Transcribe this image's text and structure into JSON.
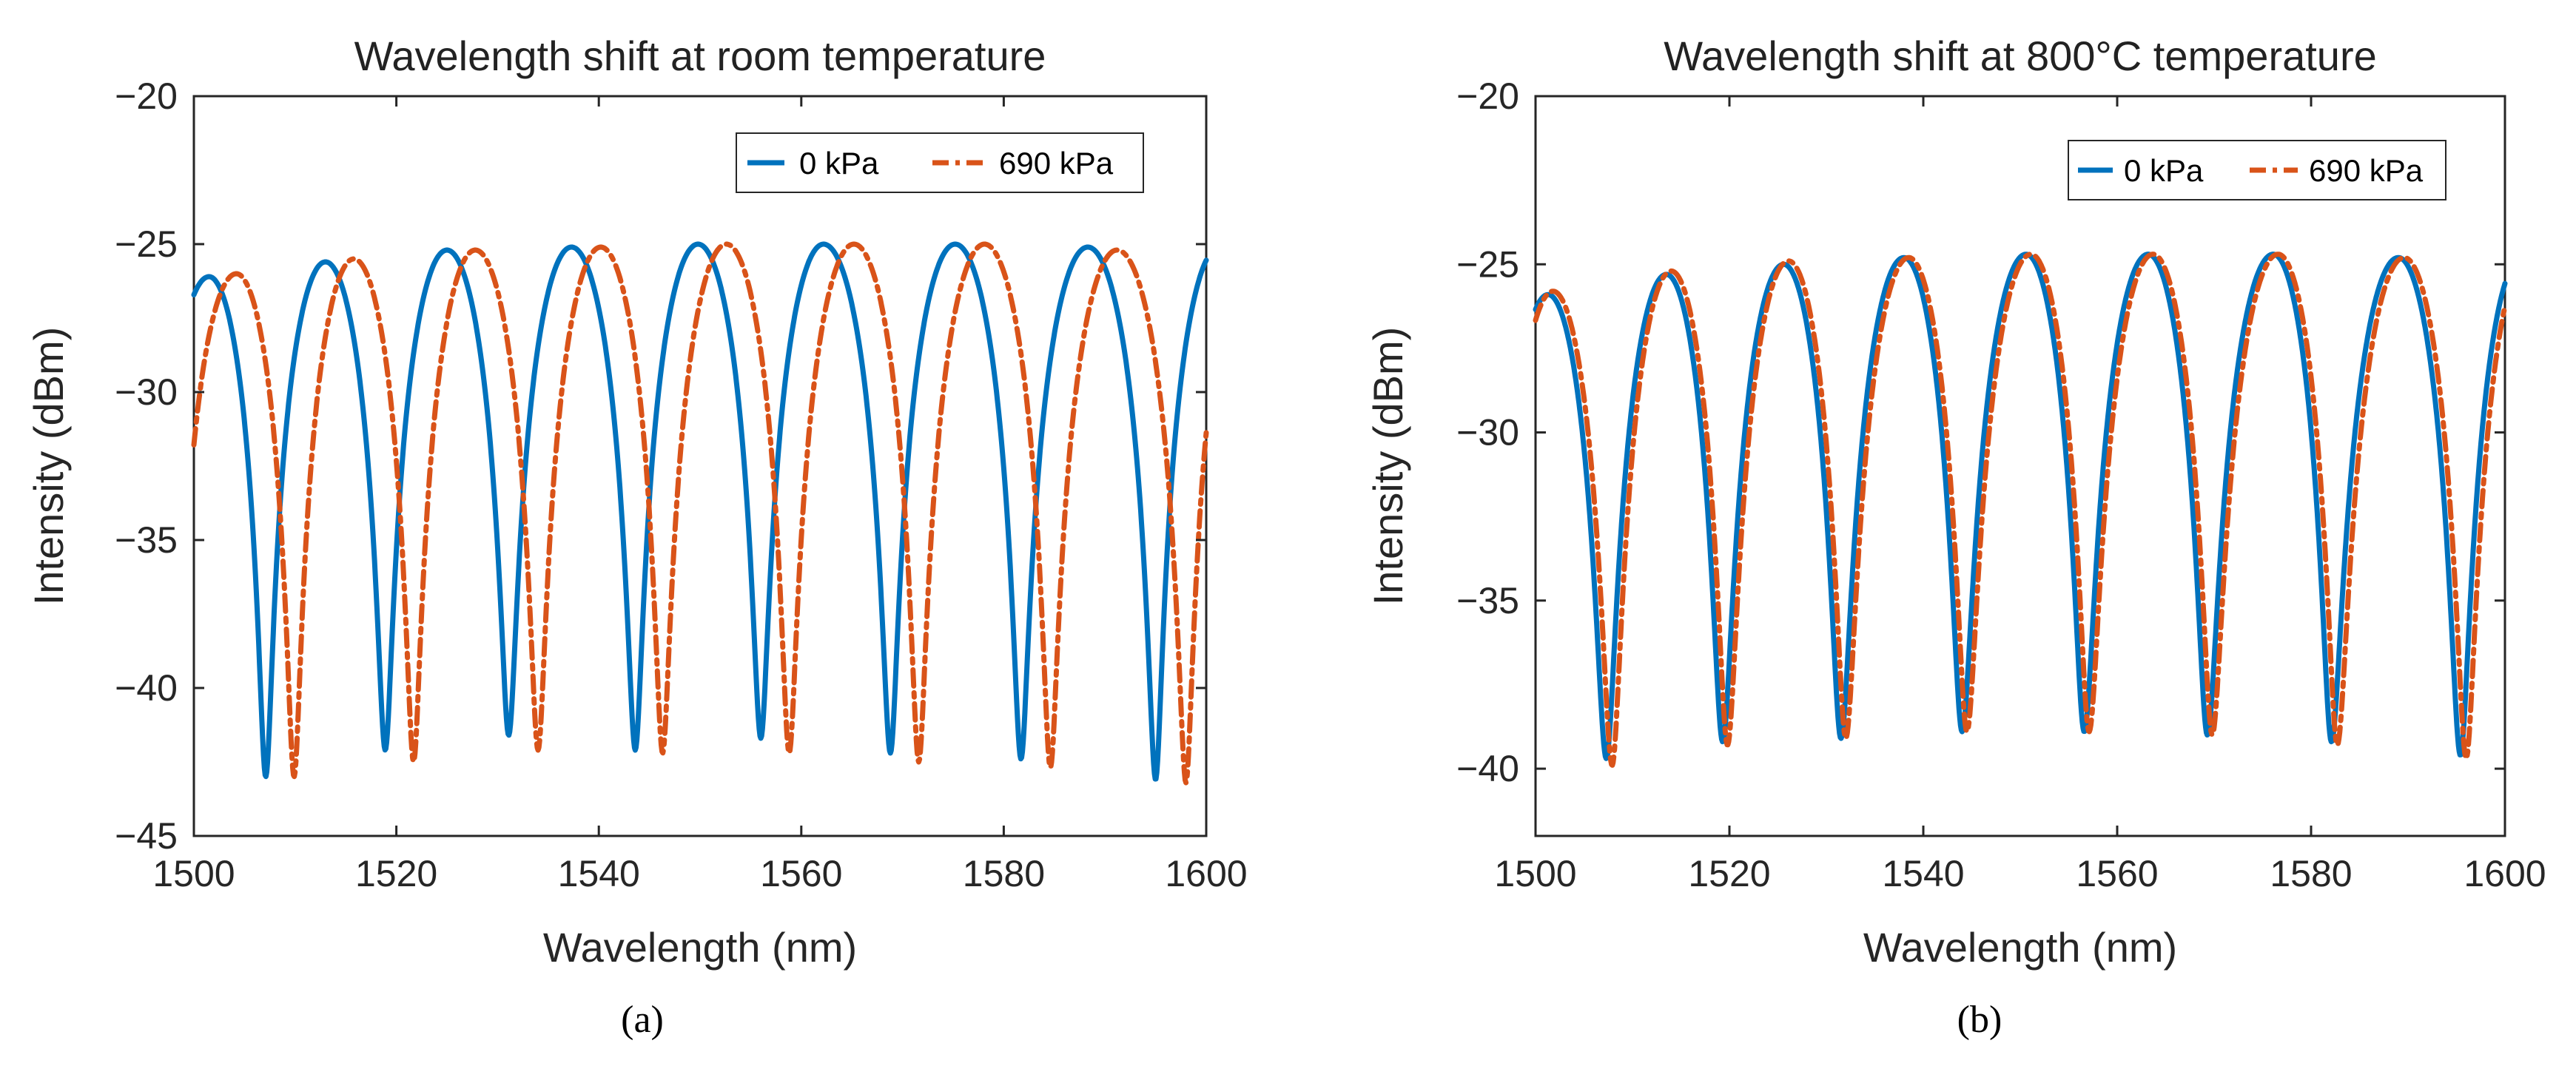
{
  "figure": {
    "captions": [
      "(a)",
      "(b)"
    ]
  },
  "legend": {
    "series_a": "0 kPa",
    "series_b": "690 kPa"
  },
  "colors": {
    "series_a": "#0072BD",
    "series_b": "#D95319",
    "axis": "#262626"
  },
  "chart_data": [
    {
      "type": "line",
      "title": "Wavelength shift at room temperature",
      "xlabel": "Wavelength (nm)",
      "ylabel": "Intensity (dBm)",
      "xlim": [
        1500,
        1600
      ],
      "ylim": [
        -45,
        -20
      ],
      "xticks": [
        1500,
        1520,
        1540,
        1560,
        1580,
        1600
      ],
      "yticks": [
        -45,
        -40,
        -35,
        -30,
        -25,
        -20
      ],
      "xtick_labels": [
        "1500",
        "1520",
        "1540",
        "1560",
        "1580",
        "1600"
      ],
      "ytick_labels": [
        "−45",
        "−40",
        "−35",
        "−30",
        "−25",
        "−20"
      ],
      "legend_position": "top-right",
      "series": [
        {
          "name": "0 kPa",
          "style": "solid",
          "color": "#0072BD",
          "dips": [
            1507.1,
            1518.9,
            1531.1,
            1543.6,
            1556.0,
            1568.8,
            1581.7,
            1595.0
          ],
          "dip_min": [
            -43.0,
            -42.1,
            -41.6,
            -42.1,
            -41.7,
            -42.2,
            -42.4,
            -43.1
          ],
          "peaks": [
            1501.5,
            1513.0,
            1525.0,
            1537.3,
            1549.8,
            1562.2,
            1575.2,
            1588.3
          ],
          "peak_max": [
            -26.1,
            -25.6,
            -25.2,
            -25.1,
            -25.0,
            -25.0,
            -25.0,
            -25.1
          ]
        },
        {
          "name": "690 kPa",
          "style": "dashdot",
          "color": "#D95319",
          "dips": [
            1509.9,
            1521.7,
            1534.0,
            1546.3,
            1558.8,
            1571.6,
            1584.6,
            1598.0
          ],
          "dip_min": [
            -43.0,
            -42.5,
            -42.1,
            -42.2,
            -42.2,
            -42.5,
            -42.7,
            -43.2
          ],
          "peaks": [
            1504.2,
            1515.8,
            1527.8,
            1540.2,
            1552.6,
            1565.2,
            1578.1,
            1591.2
          ],
          "peak_max": [
            -26.0,
            -25.5,
            -25.2,
            -25.1,
            -25.0,
            -25.0,
            -25.0,
            -25.2
          ]
        }
      ]
    },
    {
      "type": "line",
      "title": "Wavelength shift at 800°C temperature",
      "xlabel": "Wavelength (nm)",
      "ylabel": "Intensity (dBm)",
      "xlim": [
        1500,
        1600
      ],
      "ylim": [
        -42,
        -20
      ],
      "xticks": [
        1500,
        1520,
        1540,
        1560,
        1580,
        1600
      ],
      "yticks": [
        -40,
        -35,
        -30,
        -25,
        -20
      ],
      "xtick_labels": [
        "1500",
        "1520",
        "1540",
        "1560",
        "1580",
        "1600"
      ],
      "ytick_labels": [
        "−40",
        "−35",
        "−30",
        "−25",
        "−20"
      ],
      "legend_position": "top-right",
      "series": [
        {
          "name": "0 kPa",
          "style": "solid",
          "color": "#0072BD",
          "dips": [
            1507.3,
            1519.3,
            1531.5,
            1544.0,
            1556.6,
            1569.3,
            1582.1,
            1595.4
          ],
          "dip_min": [
            -39.7,
            -39.2,
            -39.1,
            -38.9,
            -38.9,
            -39.0,
            -39.2,
            -39.6
          ],
          "peaks": [
            1501.3,
            1513.5,
            1525.6,
            1538.0,
            1550.6,
            1563.2,
            1576.1,
            1589.0
          ],
          "peak_max": [
            -25.9,
            -25.3,
            -25.0,
            -24.8,
            -24.7,
            -24.7,
            -24.7,
            -24.8
          ]
        },
        {
          "name": "690 kPa",
          "style": "dashdot",
          "color": "#D95319",
          "dips": [
            1507.9,
            1519.8,
            1532.0,
            1544.5,
            1557.1,
            1569.8,
            1582.7,
            1596.0
          ],
          "dip_min": [
            -39.9,
            -39.3,
            -39.1,
            -38.9,
            -38.9,
            -39.0,
            -39.3,
            -39.7
          ],
          "peaks": [
            1501.8,
            1514.0,
            1526.1,
            1538.5,
            1551.1,
            1563.7,
            1576.6,
            1589.6
          ],
          "peak_max": [
            -25.8,
            -25.2,
            -24.9,
            -24.8,
            -24.7,
            -24.7,
            -24.7,
            -24.8
          ]
        }
      ]
    }
  ]
}
